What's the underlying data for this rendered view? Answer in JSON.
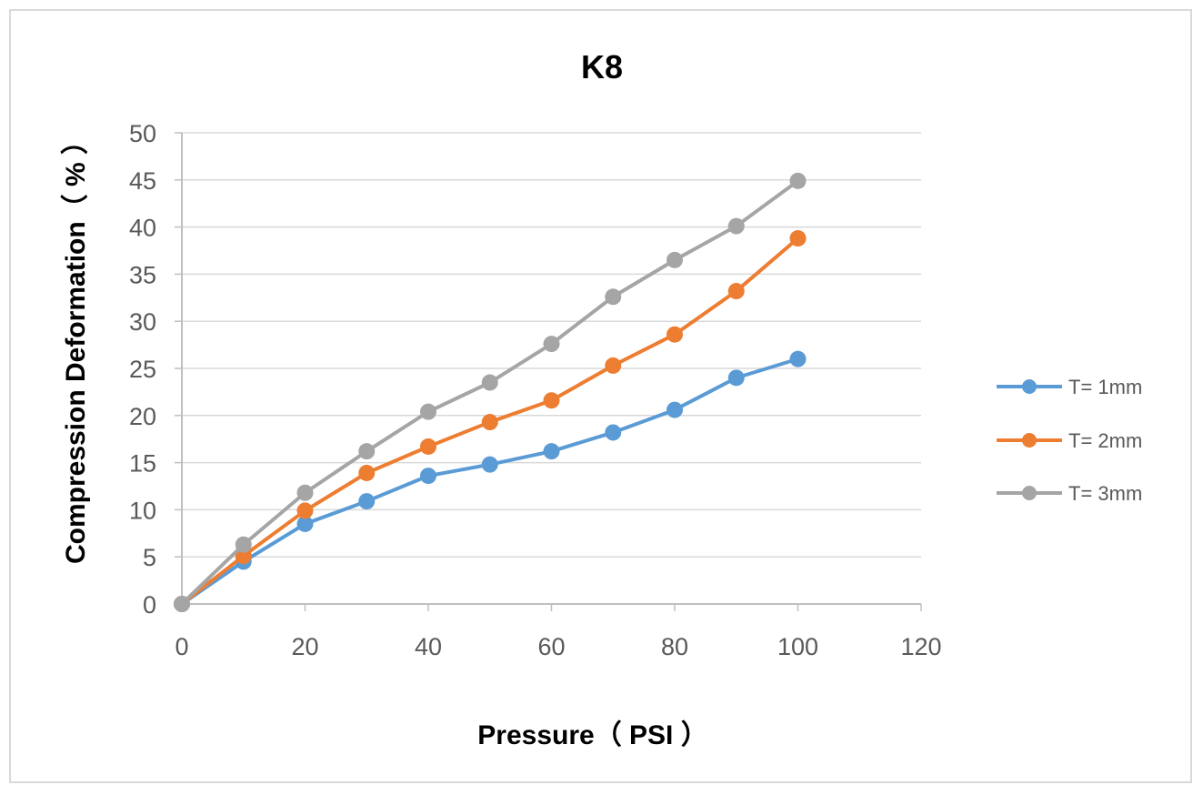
{
  "chart_data": {
    "type": "line",
    "title": "K8",
    "xlabel": "Pressure（ PSI ）",
    "ylabel": "Compression Deformation（ % ）",
    "x": [
      0,
      10,
      20,
      30,
      40,
      50,
      60,
      70,
      80,
      90,
      100
    ],
    "xlim": [
      0,
      120
    ],
    "ylim": [
      0,
      50
    ],
    "xticks": [
      0,
      20,
      40,
      60,
      80,
      100,
      120
    ],
    "yticks": [
      0,
      5,
      10,
      15,
      20,
      25,
      30,
      35,
      40,
      45,
      50
    ],
    "grid": true,
    "legend_position": "right",
    "series": [
      {
        "name": "T= 1mm",
        "color": "#5b9bd5",
        "values": [
          0,
          4.5,
          8.5,
          10.9,
          13.6,
          14.8,
          16.2,
          18.2,
          20.6,
          24.0,
          26.0
        ]
      },
      {
        "name": "T= 2mm",
        "color": "#ed7d31",
        "values": [
          0,
          5.1,
          9.9,
          13.9,
          16.7,
          19.3,
          21.6,
          25.3,
          28.6,
          33.2,
          38.8
        ]
      },
      {
        "name": "T= 3mm",
        "color": "#a5a5a5",
        "values": [
          0,
          6.3,
          11.8,
          16.2,
          20.4,
          23.5,
          27.6,
          32.6,
          36.5,
          40.1,
          44.9
        ]
      }
    ]
  }
}
